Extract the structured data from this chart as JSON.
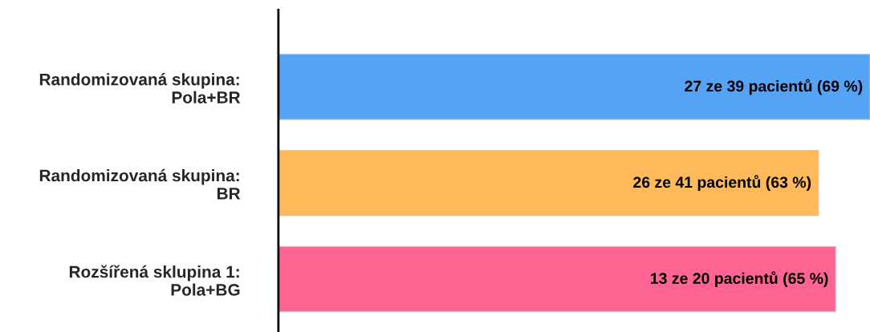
{
  "chart_data": {
    "type": "bar",
    "orientation": "horizontal",
    "xlim": [
      0,
      69
    ],
    "categories": [
      "Randomizovaná skupina:\nPola+BR",
      "Randomizovaná skupina:\nBR",
      "Rozšířená sklupina 1:\nPola+BG"
    ],
    "values": [
      69,
      63,
      65
    ],
    "colors": [
      "#55a3f5",
      "#fdb95a",
      "#fe6593"
    ],
    "value_labels": [
      "27 ze 39 pacientů (69 %)",
      "26 ze 41 pacientů (63 %)",
      "13 ze 20 pacientů (65 %)"
    ],
    "grid": false,
    "legend": false,
    "tick_labels": "y"
  }
}
